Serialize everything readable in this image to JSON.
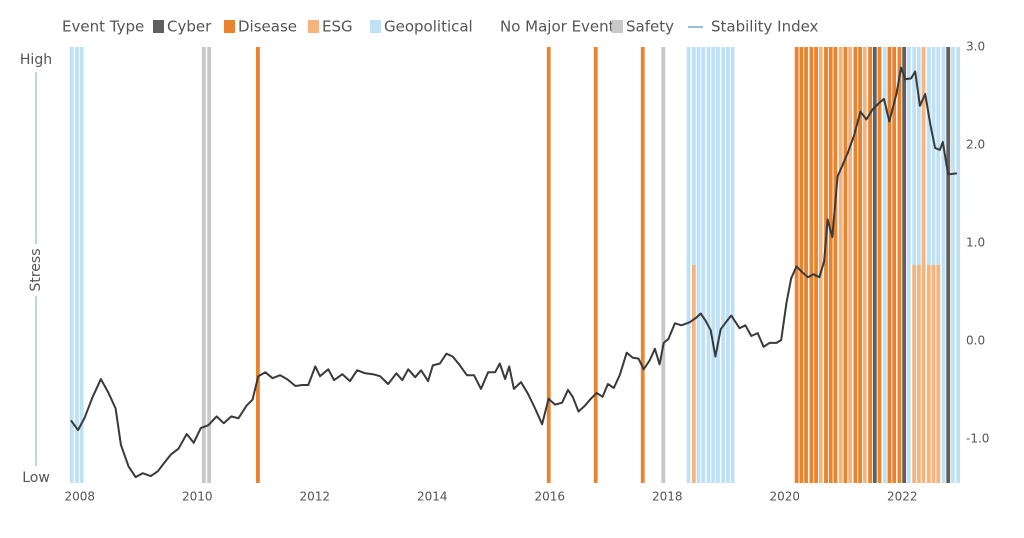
{
  "chart_data": {
    "type": "line",
    "legend_title": "Event Type",
    "ylabel": "Stress",
    "y_label_high": "High",
    "y_label_low": "Low",
    "xlim": [
      2007.8,
      2023.0
    ],
    "xticks": [
      2008,
      2010,
      2012,
      2014,
      2016,
      2018,
      2020,
      2022
    ],
    "ylim": [
      -1.45,
      3.0
    ],
    "yticks": [
      {
        "value": -1,
        "label": "-1.0"
      },
      {
        "value": 0,
        "label": "0.0"
      },
      {
        "value": 1,
        "label": "1.0"
      },
      {
        "value": 2,
        "label": "2.0"
      },
      {
        "value": 3,
        "label": "3.0"
      }
    ],
    "event_types": [
      {
        "name": "Cyber",
        "color": "#5f5f5f"
      },
      {
        "name": "Disease",
        "color": "#e8832f"
      },
      {
        "name": "ESG",
        "color": "#f3b47f"
      },
      {
        "name": "Geopolitical",
        "color": "#bfe1f6"
      },
      {
        "name": "No Major Event",
        "color": "#ffffff"
      },
      {
        "name": "Safety",
        "color": "#c8c8c8"
      }
    ],
    "events": [
      {
        "x": 2007.83,
        "type": "Geopolitical"
      },
      {
        "x": 2007.92,
        "type": "Geopolitical"
      },
      {
        "x": 2008.0,
        "type": "Geopolitical"
      },
      {
        "x": 2010.08,
        "type": "Safety"
      },
      {
        "x": 2010.17,
        "type": "Safety"
      },
      {
        "x": 2011.0,
        "type": "Disease"
      },
      {
        "x": 2015.95,
        "type": "Disease"
      },
      {
        "x": 2016.75,
        "type": "Disease"
      },
      {
        "x": 2017.55,
        "type": "Disease"
      },
      {
        "x": 2017.9,
        "type": "Safety"
      },
      {
        "x": 2018.33,
        "type": "Geopolitical"
      },
      {
        "x": 2018.42,
        "type": "Geopolitical",
        "lower_type": "ESG"
      },
      {
        "x": 2018.5,
        "type": "Geopolitical"
      },
      {
        "x": 2018.58,
        "type": "Geopolitical"
      },
      {
        "x": 2018.67,
        "type": "Geopolitical"
      },
      {
        "x": 2018.75,
        "type": "Geopolitical"
      },
      {
        "x": 2018.83,
        "type": "Geopolitical"
      },
      {
        "x": 2018.92,
        "type": "Geopolitical"
      },
      {
        "x": 2019.0,
        "type": "Geopolitical"
      },
      {
        "x": 2019.08,
        "type": "Geopolitical"
      },
      {
        "x": 2020.17,
        "type": "Disease"
      },
      {
        "x": 2020.25,
        "type": "Disease"
      },
      {
        "x": 2020.33,
        "type": "Disease"
      },
      {
        "x": 2020.42,
        "type": "Disease"
      },
      {
        "x": 2020.5,
        "type": "Disease"
      },
      {
        "x": 2020.58,
        "type": "ESG"
      },
      {
        "x": 2020.67,
        "type": "Disease"
      },
      {
        "x": 2020.75,
        "type": "Disease"
      },
      {
        "x": 2020.83,
        "type": "Disease"
      },
      {
        "x": 2020.92,
        "type": "ESG"
      },
      {
        "x": 2021.0,
        "type": "Disease"
      },
      {
        "x": 2021.08,
        "type": "ESG"
      },
      {
        "x": 2021.17,
        "type": "Disease"
      },
      {
        "x": 2021.25,
        "type": "Disease"
      },
      {
        "x": 2021.33,
        "type": "ESG"
      },
      {
        "x": 2021.42,
        "type": "Disease"
      },
      {
        "x": 2021.5,
        "type": "Cyber"
      },
      {
        "x": 2021.58,
        "type": "Disease"
      },
      {
        "x": 2021.67,
        "type": "Geopolitical"
      },
      {
        "x": 2021.75,
        "type": "Disease"
      },
      {
        "x": 2021.83,
        "type": "Disease"
      },
      {
        "x": 2021.92,
        "type": "Disease"
      },
      {
        "x": 2022.0,
        "type": "Cyber"
      },
      {
        "x": 2022.08,
        "type": "Geopolitical"
      },
      {
        "x": 2022.17,
        "type": "Geopolitical",
        "lower_type": "ESG"
      },
      {
        "x": 2022.25,
        "type": "Geopolitical",
        "lower_type": "ESG"
      },
      {
        "x": 2022.33,
        "type": "ESG"
      },
      {
        "x": 2022.42,
        "type": "Geopolitical",
        "lower_type": "ESG"
      },
      {
        "x": 2022.5,
        "type": "Geopolitical",
        "lower_type": "ESG"
      },
      {
        "x": 2022.58,
        "type": "Geopolitical",
        "lower_type": "ESG"
      },
      {
        "x": 2022.67,
        "type": "Geopolitical"
      },
      {
        "x": 2022.75,
        "type": "Cyber"
      },
      {
        "x": 2022.83,
        "type": "Geopolitical"
      },
      {
        "x": 2022.92,
        "type": "Geopolitical"
      }
    ],
    "x": [
      2007.85,
      2007.97,
      2008.08,
      2008.22,
      2008.36,
      2008.49,
      2008.61,
      2008.7,
      2008.83,
      2008.95,
      2009.07,
      2009.21,
      2009.33,
      2009.43,
      2009.55,
      2009.68,
      2009.82,
      2009.94,
      2010.06,
      2010.19,
      2010.33,
      2010.45,
      2010.58,
      2010.7,
      2010.84,
      2010.94,
      2011.04,
      2011.16,
      2011.28,
      2011.41,
      2011.53,
      2011.67,
      2011.79,
      2011.89,
      2012.01,
      2012.09,
      2012.23,
      2012.33,
      2012.47,
      2012.6,
      2012.72,
      2012.86,
      2012.99,
      2013.11,
      2013.25,
      2013.39,
      2013.49,
      2013.59,
      2013.71,
      2013.81,
      2013.93,
      2014.01,
      2014.13,
      2014.24,
      2014.35,
      2014.47,
      2014.59,
      2014.71,
      2014.83,
      2014.95,
      2015.07,
      2015.15,
      2015.24,
      2015.31,
      2015.39,
      2015.51,
      2015.63,
      2015.75,
      2015.87,
      2015.98,
      2016.09,
      2016.21,
      2016.31,
      2016.39,
      2016.49,
      2016.6,
      2016.7,
      2016.8,
      2016.9,
      2016.99,
      2017.09,
      2017.19,
      2017.31,
      2017.41,
      2017.51,
      2017.6,
      2017.7,
      2017.79,
      2017.87,
      2017.94,
      2018.02,
      2018.13,
      2018.24,
      2018.38,
      2018.5,
      2018.57,
      2018.65,
      2018.74,
      2018.82,
      2018.91,
      2019.01,
      2019.09,
      2019.23,
      2019.33,
      2019.43,
      2019.54,
      2019.64,
      2019.74,
      2019.86,
      2019.94,
      2020.03,
      2020.11,
      2020.2,
      2020.3,
      2020.39,
      2020.49,
      2020.59,
      2020.67,
      2020.73,
      2020.81,
      2020.9,
      2020.98,
      2021.08,
      2021.18,
      2021.29,
      2021.39,
      2021.49,
      2021.59,
      2021.69,
      2021.78,
      2021.9,
      2021.98,
      2022.05,
      2022.15,
      2022.22,
      2022.3,
      2022.39,
      2022.48,
      2022.56,
      2022.64,
      2022.69,
      2022.78,
      2022.93
    ],
    "series": [
      {
        "name": "Stability Index",
        "color": "#3a3a3a",
        "values": [
          -0.81,
          -0.91,
          -0.79,
          -0.57,
          -0.39,
          -0.53,
          -0.69,
          -1.06,
          -1.28,
          -1.39,
          -1.35,
          -1.38,
          -1.33,
          -1.25,
          -1.16,
          -1.1,
          -0.95,
          -1.04,
          -0.89,
          -0.86,
          -0.77,
          -0.84,
          -0.77,
          -0.79,
          -0.66,
          -0.6,
          -0.36,
          -0.32,
          -0.38,
          -0.35,
          -0.39,
          -0.46,
          -0.45,
          -0.45,
          -0.26,
          -0.36,
          -0.29,
          -0.4,
          -0.34,
          -0.41,
          -0.3,
          -0.33,
          -0.34,
          -0.36,
          -0.44,
          -0.33,
          -0.4,
          -0.29,
          -0.37,
          -0.3,
          -0.41,
          -0.25,
          -0.23,
          -0.13,
          -0.16,
          -0.25,
          -0.35,
          -0.35,
          -0.49,
          -0.32,
          -0.32,
          -0.23,
          -0.39,
          -0.26,
          -0.49,
          -0.42,
          -0.54,
          -0.69,
          -0.85,
          -0.59,
          -0.65,
          -0.63,
          -0.5,
          -0.57,
          -0.72,
          -0.66,
          -0.59,
          -0.53,
          -0.57,
          -0.44,
          -0.48,
          -0.35,
          -0.12,
          -0.17,
          -0.18,
          -0.29,
          -0.2,
          -0.08,
          -0.24,
          -0.02,
          0.02,
          0.18,
          0.16,
          0.19,
          0.24,
          0.28,
          0.21,
          0.11,
          -0.16,
          0.12,
          0.2,
          0.26,
          0.13,
          0.16,
          0.05,
          0.08,
          -0.06,
          -0.02,
          -0.02,
          0.01,
          0.39,
          0.64,
          0.76,
          0.7,
          0.65,
          0.68,
          0.65,
          0.81,
          1.24,
          1.06,
          1.68,
          1.79,
          1.93,
          2.1,
          2.34,
          2.26,
          2.36,
          2.42,
          2.47,
          2.24,
          2.52,
          2.79,
          2.67,
          2.68,
          2.75,
          2.4,
          2.52,
          2.2,
          1.97,
          1.95,
          2.03,
          1.7,
          1.71
        ]
      }
    ]
  }
}
